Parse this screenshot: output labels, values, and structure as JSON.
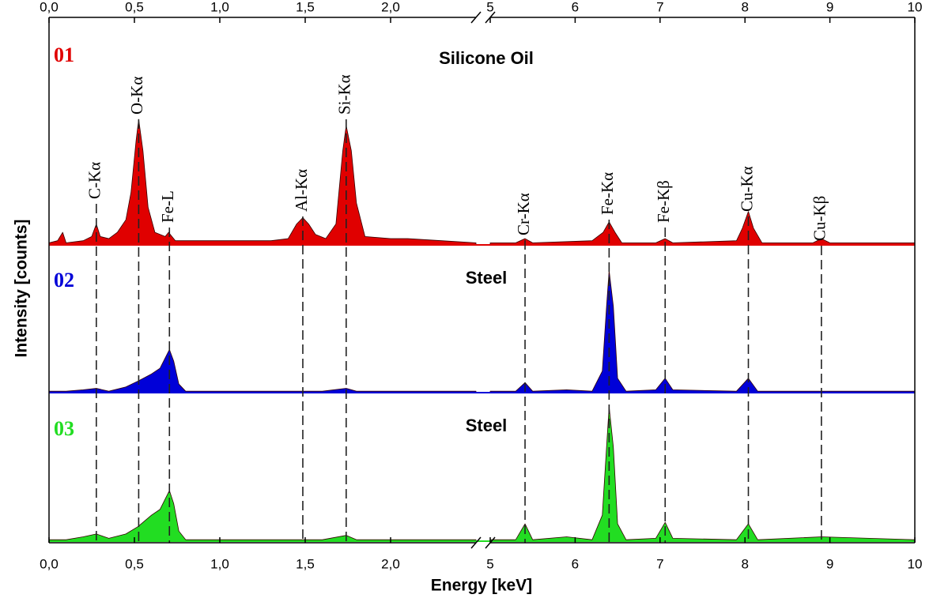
{
  "chart_data": {
    "type": "area",
    "x_label": "Energy [keV]",
    "y_label": "Intensity [counts]",
    "xlim": [
      0,
      10
    ],
    "xbreak": [
      2.5,
      5
    ],
    "xticks": [
      {
        "value": 0,
        "label": "0,0"
      },
      {
        "value": 0.5,
        "label": "0,5"
      },
      {
        "value": 1,
        "label": "1,0"
      },
      {
        "value": 1.5,
        "label": "1,5"
      },
      {
        "value": 2,
        "label": "2,0"
      },
      5,
      6,
      7,
      8,
      9,
      10
    ],
    "ylim": [
      0,
      100
    ],
    "series": [
      {
        "name": "01",
        "title": "Silicone Oil",
        "color": "#e00000",
        "x": [
          0,
          0.05,
          0.08,
          0.1,
          0.2,
          0.25,
          0.277,
          0.3,
          0.35,
          0.4,
          0.45,
          0.48,
          0.51,
          0.525,
          0.55,
          0.58,
          0.62,
          0.68,
          0.7,
          0.74,
          0.9,
          1.1,
          1.3,
          1.4,
          1.45,
          1.486,
          1.52,
          1.56,
          1.62,
          1.68,
          1.72,
          1.74,
          1.77,
          1.8,
          1.85,
          2.0,
          2.1,
          2.3,
          2.5,
          5.0,
          5.3,
          5.41,
          5.5,
          6.2,
          6.33,
          6.4,
          6.47,
          6.55,
          6.95,
          7.06,
          7.15,
          7.9,
          7.97,
          8.04,
          8.1,
          8.2,
          8.8,
          8.9,
          9.0,
          9.5,
          10.0
        ],
        "values": [
          1,
          2,
          6,
          1,
          2,
          4,
          10,
          4,
          3,
          6,
          12,
          25,
          50,
          60,
          45,
          18,
          6,
          4,
          6,
          2,
          2,
          2,
          2,
          3,
          10,
          13,
          10,
          5,
          3,
          10,
          45,
          57,
          45,
          20,
          4,
          3,
          3,
          2,
          1,
          1,
          1,
          3,
          1,
          2,
          6,
          11,
          6,
          1,
          1,
          3,
          1,
          2,
          8,
          16,
          8,
          1,
          1,
          3,
          1,
          1,
          1
        ]
      },
      {
        "name": "02",
        "title": "Steel",
        "color": "#0000d8",
        "x": [
          0,
          0.1,
          0.2,
          0.277,
          0.35,
          0.45,
          0.52,
          0.6,
          0.65,
          0.705,
          0.73,
          0.76,
          0.8,
          1.2,
          1.486,
          1.6,
          1.74,
          1.8,
          2.5,
          5.0,
          5.3,
          5.41,
          5.5,
          5.9,
          6.2,
          6.32,
          6.37,
          6.4,
          6.45,
          6.5,
          6.6,
          6.95,
          7.06,
          7.15,
          7.9,
          8.04,
          8.15,
          8.9,
          10.0
        ],
        "values": [
          1,
          1,
          2,
          3,
          1,
          4,
          8,
          13,
          17,
          30,
          22,
          6,
          1,
          1,
          1,
          1,
          3,
          1,
          1,
          1,
          1,
          7,
          1,
          2,
          1,
          15,
          60,
          85,
          60,
          10,
          1,
          2,
          10,
          2,
          1,
          10,
          1,
          1,
          1
        ]
      },
      {
        "name": "03",
        "title": "Steel",
        "color": "#22dd22",
        "x": [
          0,
          0.1,
          0.2,
          0.277,
          0.35,
          0.45,
          0.52,
          0.6,
          0.65,
          0.705,
          0.73,
          0.76,
          0.8,
          1.2,
          1.486,
          1.6,
          1.74,
          1.8,
          2.5,
          5.0,
          5.3,
          5.41,
          5.5,
          5.9,
          6.2,
          6.32,
          6.37,
          6.4,
          6.45,
          6.5,
          6.6,
          6.95,
          7.06,
          7.15,
          7.9,
          8.04,
          8.15,
          8.9,
          10.0
        ],
        "values": [
          1,
          1,
          3,
          5,
          2,
          5,
          10,
          18,
          22,
          35,
          26,
          7,
          1,
          1,
          1,
          1,
          4,
          1,
          1,
          1,
          1,
          12,
          1,
          3,
          1,
          18,
          65,
          93,
          65,
          12,
          1,
          2,
          13,
          2,
          1,
          12,
          1,
          3,
          1
        ]
      }
    ],
    "peaks": [
      {
        "label": "C-Kα",
        "energy": 0.277
      },
      {
        "label": "O-Kα",
        "energy": 0.525
      },
      {
        "label": "Fe-L",
        "energy": 0.705
      },
      {
        "label": "Al-Kα",
        "energy": 1.486
      },
      {
        "label": "Si-Kα",
        "energy": 1.74
      },
      {
        "label": "Cr-Kα",
        "energy": 5.41
      },
      {
        "label": "Fe-Kα",
        "energy": 6.4
      },
      {
        "label": "Fe-Kβ",
        "energy": 7.06
      },
      {
        "label": "Cu-Kα",
        "energy": 8.04
      },
      {
        "label": "Cu-Kβ",
        "energy": 8.9
      }
    ]
  }
}
